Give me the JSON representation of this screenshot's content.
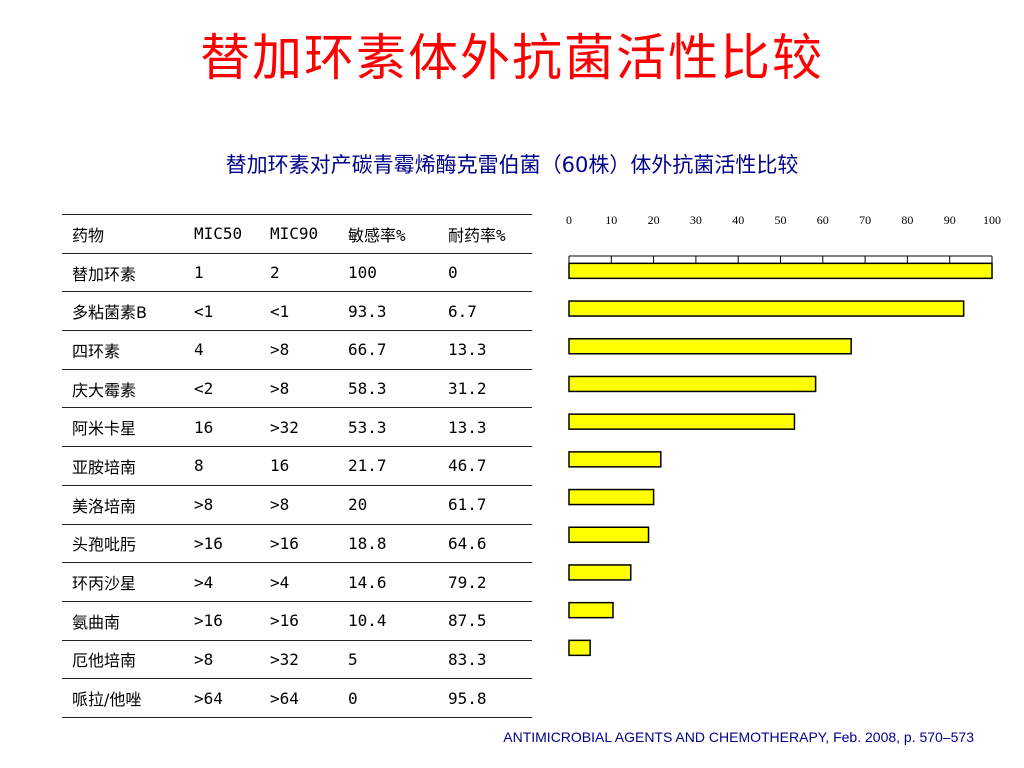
{
  "title": "替加环素体外抗菌活性比较",
  "subtitle": "替加环素对产碳青霉烯酶克雷伯菌（60株）体外抗菌活性比较",
  "table": {
    "headers": [
      "药物",
      "MIC50",
      "MIC90",
      "敏感率%",
      "耐药率%"
    ],
    "rows": [
      [
        "替加环素",
        "1",
        "2",
        "100",
        "0"
      ],
      [
        "多粘菌素B",
        "<1",
        "<1",
        "93.3",
        "6.7"
      ],
      [
        "四环素",
        "4",
        ">8",
        "66.7",
        "13.3"
      ],
      [
        "庆大霉素",
        "<2",
        ">8",
        "58.3",
        "31.2"
      ],
      [
        "阿米卡星",
        "16",
        ">32",
        "53.3",
        "13.3"
      ],
      [
        "亚胺培南",
        "8",
        "16",
        "21.7",
        "46.7"
      ],
      [
        "美洛培南",
        ">8",
        ">8",
        "20",
        "61.7"
      ],
      [
        "头孢吡肟",
        ">16",
        ">16",
        "18.8",
        "64.6"
      ],
      [
        "环丙沙星",
        ">4",
        ">4",
        "14.6",
        "79.2"
      ],
      [
        "氨曲南",
        ">16",
        ">16",
        "10.4",
        "87.5"
      ],
      [
        "厄他培南",
        ">8",
        ">32",
        "5",
        "83.3"
      ],
      [
        "哌拉/他唑",
        ">64",
        ">64",
        "0",
        "95.8"
      ]
    ]
  },
  "chart_data": {
    "type": "bar",
    "orientation": "horizontal",
    "categories": [
      "替加环素",
      "多粘菌素B",
      "四环素",
      "庆大霉素",
      "阿米卡星",
      "亚胺培南",
      "美洛培南",
      "头孢吡肟",
      "环丙沙星",
      "氨曲南",
      "厄他培南",
      "哌拉/他唑"
    ],
    "values": [
      100,
      93.3,
      66.7,
      58.3,
      53.3,
      21.7,
      20,
      18.8,
      14.6,
      10.4,
      5,
      0
    ],
    "xlim": [
      0,
      100
    ],
    "ticks": [
      "0",
      "10",
      "20",
      "30",
      "40",
      "50",
      "60",
      "70",
      "80",
      "90",
      "100"
    ],
    "bar_color": "#ffff00",
    "bar_outline": "#000000",
    "grid": false
  },
  "citation": "ANTIMICROBIAL AGENTS AND CHEMOTHERAPY, Feb. 2008, p. 570–573"
}
